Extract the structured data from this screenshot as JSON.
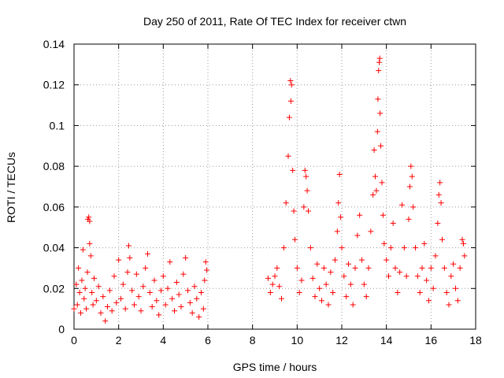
{
  "chart_data": {
    "type": "scatter",
    "title": "Day 250 of 2011, Rate Of TEC Index for receiver ctwn",
    "xlabel": "GPS time / hours",
    "ylabel": "ROTI / TECUs",
    "xlim": [
      0,
      18
    ],
    "ylim": [
      0,
      0.14
    ],
    "x_ticks": [
      "0",
      "2",
      "4",
      "6",
      "8",
      "10",
      "12",
      "14",
      "16",
      "18"
    ],
    "y_ticks": [
      "0",
      "0.02",
      "0.04",
      "0.06",
      "0.08",
      "0.1",
      "0.12",
      "0.14"
    ],
    "grid": true,
    "marker": "plus",
    "point_color": "#ff0000",
    "series": [
      {
        "points": [
          [
            0.0,
            0.01
          ],
          [
            0.1,
            0.022
          ],
          [
            0.15,
            0.012
          ],
          [
            0.2,
            0.03
          ],
          [
            0.25,
            0.018
          ],
          [
            0.3,
            0.008
          ],
          [
            0.35,
            0.024
          ],
          [
            0.4,
            0.039
          ],
          [
            0.45,
            0.015
          ],
          [
            0.5,
            0.02
          ],
          [
            0.55,
            0.01
          ],
          [
            0.6,
            0.028
          ],
          [
            0.62,
            0.054
          ],
          [
            0.66,
            0.055
          ],
          [
            0.7,
            0.053
          ],
          [
            0.7,
            0.042
          ],
          [
            0.75,
            0.036
          ],
          [
            0.8,
            0.018
          ],
          [
            0.85,
            0.012
          ],
          [
            0.9,
            0.025
          ],
          [
            1.0,
            0.014
          ],
          [
            1.1,
            0.021
          ],
          [
            1.2,
            0.008
          ],
          [
            1.3,
            0.016
          ],
          [
            1.4,
            0.004
          ],
          [
            1.5,
            0.011
          ],
          [
            1.6,
            0.019
          ],
          [
            1.7,
            0.009
          ],
          [
            1.8,
            0.026
          ],
          [
            1.9,
            0.013
          ],
          [
            2.0,
            0.034
          ],
          [
            2.1,
            0.015
          ],
          [
            2.2,
            0.022
          ],
          [
            2.3,
            0.01
          ],
          [
            2.4,
            0.028
          ],
          [
            2.45,
            0.041
          ],
          [
            2.5,
            0.035
          ],
          [
            2.6,
            0.019
          ],
          [
            2.7,
            0.012
          ],
          [
            2.8,
            0.027
          ],
          [
            2.9,
            0.016
          ],
          [
            3.0,
            0.009
          ],
          [
            3.1,
            0.021
          ],
          [
            3.2,
            0.03
          ],
          [
            3.3,
            0.037
          ],
          [
            3.4,
            0.018
          ],
          [
            3.5,
            0.011
          ],
          [
            3.6,
            0.024
          ],
          [
            3.7,
            0.014
          ],
          [
            3.8,
            0.007
          ],
          [
            3.9,
            0.019
          ],
          [
            4.0,
            0.026
          ],
          [
            4.1,
            0.012
          ],
          [
            4.2,
            0.02
          ],
          [
            4.3,
            0.033
          ],
          [
            4.4,
            0.015
          ],
          [
            4.5,
            0.009
          ],
          [
            4.6,
            0.023
          ],
          [
            4.7,
            0.017
          ],
          [
            4.8,
            0.011
          ],
          [
            4.9,
            0.027
          ],
          [
            5.0,
            0.035
          ],
          [
            5.1,
            0.019
          ],
          [
            5.2,
            0.013
          ],
          [
            5.3,
            0.008
          ],
          [
            5.4,
            0.021
          ],
          [
            5.5,
            0.015
          ],
          [
            5.6,
            0.006
          ],
          [
            5.7,
            0.018
          ],
          [
            5.8,
            0.01
          ],
          [
            5.85,
            0.024
          ],
          [
            5.9,
            0.033
          ],
          [
            5.95,
            0.029
          ],
          [
            8.7,
            0.025
          ],
          [
            8.8,
            0.018
          ],
          [
            8.9,
            0.022
          ],
          [
            9.0,
            0.026
          ],
          [
            9.1,
            0.03
          ],
          [
            9.2,
            0.021
          ],
          [
            9.3,
            0.015
          ],
          [
            9.4,
            0.04
          ],
          [
            9.5,
            0.062
          ],
          [
            9.6,
            0.085
          ],
          [
            9.65,
            0.104
          ],
          [
            9.7,
            0.122
          ],
          [
            9.72,
            0.112
          ],
          [
            9.75,
            0.12
          ],
          [
            9.8,
            0.078
          ],
          [
            9.85,
            0.058
          ],
          [
            9.9,
            0.044
          ],
          [
            10.0,
            0.03
          ],
          [
            10.1,
            0.018
          ],
          [
            10.2,
            0.024
          ],
          [
            10.3,
            0.06
          ],
          [
            10.35,
            0.078
          ],
          [
            10.4,
            0.075
          ],
          [
            10.45,
            0.068
          ],
          [
            10.5,
            0.058
          ],
          [
            10.6,
            0.04
          ],
          [
            10.7,
            0.025
          ],
          [
            10.8,
            0.016
          ],
          [
            10.9,
            0.032
          ],
          [
            11.0,
            0.02
          ],
          [
            11.1,
            0.014
          ],
          [
            11.2,
            0.03
          ],
          [
            11.3,
            0.022
          ],
          [
            11.4,
            0.012
          ],
          [
            11.5,
            0.028
          ],
          [
            11.6,
            0.018
          ],
          [
            11.7,
            0.034
          ],
          [
            11.8,
            0.048
          ],
          [
            11.85,
            0.062
          ],
          [
            11.9,
            0.076
          ],
          [
            11.95,
            0.055
          ],
          [
            12.0,
            0.04
          ],
          [
            12.1,
            0.026
          ],
          [
            12.2,
            0.016
          ],
          [
            12.3,
            0.032
          ],
          [
            12.4,
            0.022
          ],
          [
            12.5,
            0.012
          ],
          [
            12.6,
            0.03
          ],
          [
            12.7,
            0.046
          ],
          [
            12.8,
            0.056
          ],
          [
            12.9,
            0.034
          ],
          [
            13.0,
            0.022
          ],
          [
            13.1,
            0.016
          ],
          [
            13.2,
            0.03
          ],
          [
            13.3,
            0.048
          ],
          [
            13.4,
            0.066
          ],
          [
            13.45,
            0.088
          ],
          [
            13.5,
            0.075
          ],
          [
            13.55,
            0.068
          ],
          [
            13.6,
            0.097
          ],
          [
            13.62,
            0.113
          ],
          [
            13.65,
            0.127
          ],
          [
            13.68,
            0.131
          ],
          [
            13.7,
            0.133
          ],
          [
            13.72,
            0.106
          ],
          [
            13.75,
            0.09
          ],
          [
            13.8,
            0.072
          ],
          [
            13.85,
            0.056
          ],
          [
            13.9,
            0.042
          ],
          [
            14.0,
            0.034
          ],
          [
            14.1,
            0.026
          ],
          [
            14.2,
            0.04
          ],
          [
            14.3,
            0.052
          ],
          [
            14.4,
            0.03
          ],
          [
            14.5,
            0.018
          ],
          [
            14.6,
            0.028
          ],
          [
            14.7,
            0.061
          ],
          [
            14.8,
            0.04
          ],
          [
            14.9,
            0.026
          ],
          [
            15.0,
            0.054
          ],
          [
            15.05,
            0.07
          ],
          [
            15.1,
            0.08
          ],
          [
            15.15,
            0.075
          ],
          [
            15.2,
            0.06
          ],
          [
            15.3,
            0.04
          ],
          [
            15.4,
            0.026
          ],
          [
            15.5,
            0.018
          ],
          [
            15.6,
            0.03
          ],
          [
            15.7,
            0.042
          ],
          [
            15.8,
            0.024
          ],
          [
            15.9,
            0.014
          ],
          [
            16.0,
            0.03
          ],
          [
            16.1,
            0.02
          ],
          [
            16.2,
            0.036
          ],
          [
            16.3,
            0.052
          ],
          [
            16.35,
            0.066
          ],
          [
            16.4,
            0.072
          ],
          [
            16.45,
            0.062
          ],
          [
            16.5,
            0.044
          ],
          [
            16.6,
            0.03
          ],
          [
            16.7,
            0.018
          ],
          [
            16.8,
            0.012
          ],
          [
            16.9,
            0.026
          ],
          [
            17.0,
            0.032
          ],
          [
            17.1,
            0.02
          ],
          [
            17.2,
            0.014
          ],
          [
            17.3,
            0.03
          ],
          [
            17.4,
            0.044
          ],
          [
            17.45,
            0.042
          ],
          [
            17.5,
            0.036
          ]
        ]
      }
    ]
  }
}
